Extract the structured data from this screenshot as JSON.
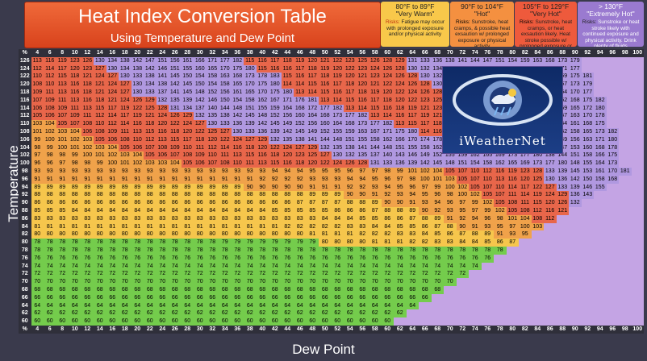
{
  "title": {
    "main": "Heat Index Conversion Table",
    "sub": "Using Temperature and Dew Point"
  },
  "legend": [
    {
      "range": "80°F to 89°F",
      "name": "\"Very Warm\"",
      "label": "Risks:",
      "text": " Fatigue may occur with prolonged exposure and/or physical activity",
      "color": "#f8c84a"
    },
    {
      "range": "90°F to 104°F",
      "name": "\"Hot\"",
      "label": "Risks:",
      "text": " Sunstroke, heat cramps, & possible heat exsaution w/ prolonged exposure or physical activity",
      "color": "#f49040"
    },
    {
      "range": "105°F to 129°F",
      "name": "\"Very Hot\"",
      "label": "Risks:",
      "text": " Sunstroke, heat cramps, or heat exsaution likely. Heat stroke possible w/ prolonged exposure or physical activity",
      "color": "#ee5a3c"
    },
    {
      "range": "> 130°F",
      "name": "\"Extremely Hot\"",
      "label": "Risks:",
      "text": " Sunstroke or heat stroke likely with continued exposure and physical activity. Drink plenty of fluids",
      "color": "#9a7ad0"
    }
  ],
  "axis": {
    "temperature": "Temperature",
    "dew_point": "Dew Point"
  },
  "corner_label": "%",
  "columns": [
    "4",
    "6",
    "8",
    "10",
    "12",
    "14",
    "16",
    "18",
    "20",
    "22",
    "24",
    "26",
    "28",
    "30",
    "32",
    "34",
    "36",
    "38",
    "40",
    "42",
    "44",
    "46",
    "48",
    "50",
    "52",
    "54",
    "56",
    "58",
    "60",
    "62",
    "64",
    "66",
    "68",
    "70",
    "72",
    "74",
    "76",
    "78",
    "80",
    "82",
    "84",
    "86",
    "88",
    "90",
    "92",
    "94",
    "96",
    "98",
    "100"
  ],
  "rows": [
    "126",
    "124",
    "122",
    "120",
    "118",
    "116",
    "114",
    "112",
    "110",
    "108",
    "106",
    "104",
    "102",
    "100",
    "98",
    "96",
    "94",
    "92",
    "90",
    "88",
    "86",
    "84",
    "82",
    "80",
    "78",
    "76"
  ],
  "grid_summary": [
    [
      "113",
      "116",
      "119",
      "123",
      "126",
      "130",
      "134",
      "138",
      "142",
      "147",
      "151",
      "156",
      "161",
      "166",
      "171",
      "177",
      "182"
    ],
    [
      "112",
      "114",
      "117",
      "120",
      "123",
      "127",
      "130",
      "134",
      "138",
      "142",
      "146",
      "151",
      "155",
      "160",
      "165",
      "170",
      "175",
      "180"
    ],
    [
      "110",
      "112",
      "115",
      "118",
      "121",
      "124",
      "127",
      "130",
      "133",
      "138",
      "141",
      "145",
      "150",
      "154",
      "158",
      "163",
      "168",
      "173",
      "178",
      "183"
    ],
    [
      "108",
      "110",
      "113",
      "116",
      "118",
      "121",
      "124",
      "127",
      "130",
      "134",
      "138",
      "142",
      "145",
      "150",
      "154",
      "158",
      "165",
      "170",
      "175",
      "180"
    ],
    [
      "109",
      "111",
      "113",
      "116",
      "118",
      "121",
      "124",
      "127",
      "130",
      "133",
      "137",
      "141",
      "145",
      "148",
      "152",
      "156",
      "161",
      "165",
      "170",
      "175",
      "180"
    ],
    [
      "107",
      "109",
      "111",
      "113",
      "116",
      "118",
      "121",
      "124",
      "126",
      "129",
      "132",
      "135",
      "139",
      "142",
      "146",
      "150",
      "154",
      "158",
      "162",
      "167",
      "171",
      "176",
      "181"
    ],
    [
      "106",
      "108",
      "109",
      "111",
      "113",
      "115",
      "117",
      "119",
      "122",
      "125",
      "128",
      "131",
      "134",
      "137",
      "140",
      "144",
      "148",
      "151",
      "155",
      "159",
      "164",
      "168",
      "172",
      "177",
      "182"
    ],
    [
      "105",
      "106",
      "107",
      "109",
      "111",
      "112",
      "114",
      "117",
      "119",
      "121",
      "124",
      "126",
      "129",
      "132",
      "135",
      "138",
      "142",
      "145",
      "148",
      "152",
      "156",
      "160",
      "164",
      "168",
      "173",
      "177",
      "182"
    ],
    [
      "103",
      "104",
      "105",
      "107",
      "108",
      "110",
      "112",
      "114",
      "116",
      "118",
      "120",
      "122",
      "124",
      "127",
      "130",
      "133",
      "136",
      "139",
      "142",
      "145",
      "149",
      "152",
      "156",
      "160",
      "164",
      "168",
      "173",
      "177",
      "182"
    ],
    [
      "101",
      "102",
      "103",
      "104",
      "106",
      "108",
      "109",
      "111",
      "113",
      "115",
      "116",
      "118",
      "120",
      "122",
      "125",
      "127",
      "130",
      "133",
      "136",
      "139",
      "142",
      "145",
      "149",
      "152",
      "155",
      "159",
      "163",
      "167",
      "171",
      "175",
      "180"
    ],
    [
      "99",
      "100",
      "101",
      "102",
      "103",
      "105",
      "106",
      "108",
      "110",
      "112",
      "113",
      "115",
      "117",
      "118",
      "120",
      "122",
      "124",
      "127",
      "129",
      "132",
      "135",
      "138",
      "141",
      "144",
      "148",
      "151",
      "155",
      "158",
      "162",
      "166",
      "170",
      "174",
      "178",
      "182"
    ],
    [
      "98",
      "99",
      "100",
      "101",
      "102",
      "103",
      "104",
      "105",
      "106",
      "107",
      "108",
      "109",
      "110",
      "111",
      "112",
      "114",
      "116",
      "118",
      "120",
      "122",
      "124",
      "127",
      "129",
      "132",
      "135",
      "138",
      "141",
      "144",
      "148",
      "151",
      "155",
      "158",
      "162",
      "166",
      "170",
      "174",
      "178",
      "182"
    ],
    [
      "97",
      "98",
      "98",
      "99",
      "100",
      "101",
      "102",
      "103",
      "104",
      "105",
      "106",
      "107",
      "108",
      "109",
      "110",
      "111",
      "113",
      "115",
      "116",
      "118",
      "120",
      "123",
      "125",
      "127",
      "130",
      "132",
      "135",
      "137",
      "140",
      "143",
      "146",
      "149",
      "152",
      "155",
      "159",
      "162",
      "165",
      "169",
      "173",
      "177",
      "180"
    ],
    [
      "96",
      "96",
      "97",
      "98",
      "98",
      "99",
      "100",
      "101",
      "102",
      "103",
      "103",
      "104",
      "105",
      "106",
      "107",
      "108",
      "110",
      "111",
      "113",
      "115",
      "116",
      "118",
      "120",
      "122",
      "124",
      "126",
      "128",
      "131",
      "133",
      "136",
      "139",
      "142",
      "145",
      "148",
      "151",
      "154",
      "158",
      "162",
      "165",
      "169",
      "173",
      "177",
      "180"
    ]
  ]
}
